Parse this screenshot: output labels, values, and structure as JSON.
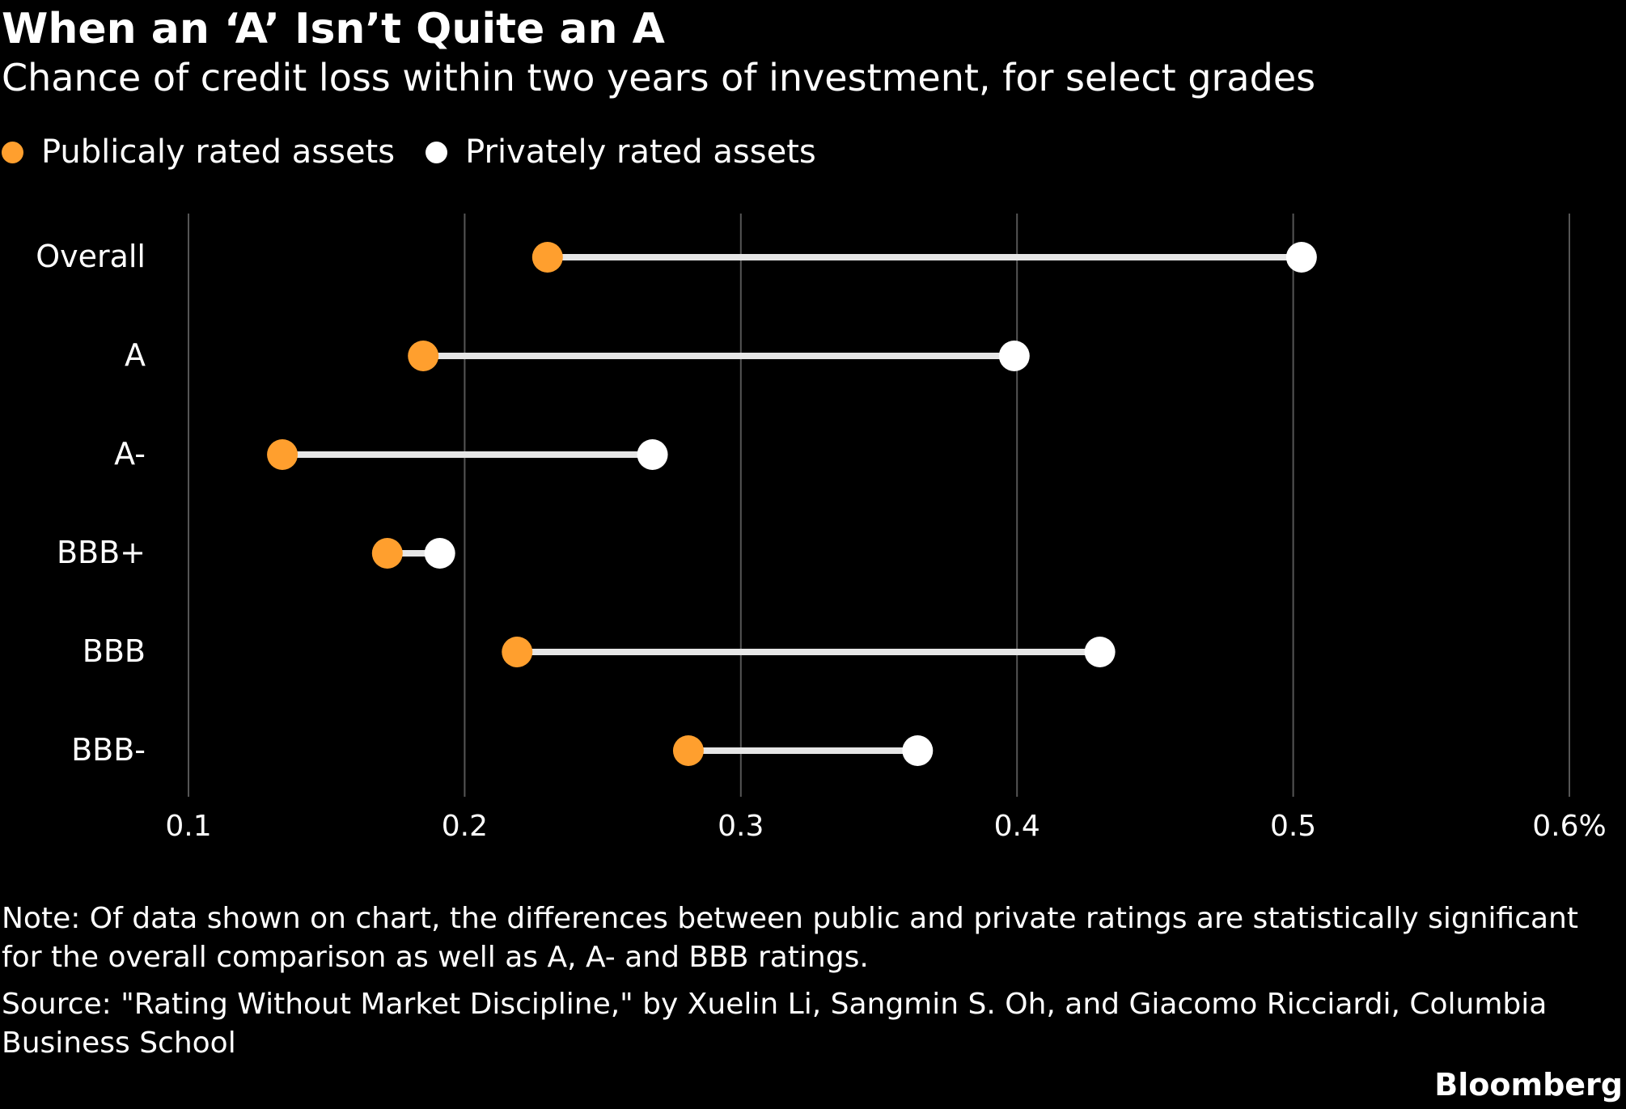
{
  "header": {
    "title": "When an ‘A’ Isn’t Quite an A",
    "subtitle": "Chance of credit loss within two years of investment, for select grades"
  },
  "legend": {
    "items": [
      {
        "label": "Publicaly rated assets",
        "color": "#ff9f2e"
      },
      {
        "label": "Privately rated assets",
        "color": "#ffffff"
      }
    ]
  },
  "footer": {
    "note": "Note: Of data shown on chart, the differences between public and private ratings are statistically significant for the overall comparison as well as A, A- and BBB ratings.",
    "source": "Source: \"Rating Without Market Discipline,\" by Xuelin Li, Sangmin S. Oh, and Giacomo Ricciardi, Columbia Business School",
    "brand": "Bloomberg"
  },
  "chart_data": {
    "type": "dumbbell",
    "categories": [
      "Overall",
      "A",
      "A-",
      "BBB+",
      "BBB",
      "BBB-"
    ],
    "series": [
      {
        "name": "Publicaly rated assets",
        "values": [
          0.23,
          0.185,
          0.134,
          0.172,
          0.219,
          0.281
        ],
        "color": "#ff9f2e"
      },
      {
        "name": "Privately rated assets",
        "values": [
          0.503,
          0.399,
          0.268,
          0.191,
          0.43,
          0.364
        ],
        "color": "#ffffff"
      }
    ],
    "xlim": [
      0.1,
      0.6
    ],
    "xticks": [
      0.1,
      0.2,
      0.3,
      0.4,
      0.5,
      0.6
    ],
    "xtick_labels": [
      "0.1",
      "0.2",
      "0.3",
      "0.4",
      "0.5",
      "0.6%"
    ],
    "xlabel": "",
    "ylabel": "",
    "grid": "vertical",
    "connector_color": "#e6e6e6",
    "gridline_color": "#555555",
    "legend_position": "top-left"
  }
}
